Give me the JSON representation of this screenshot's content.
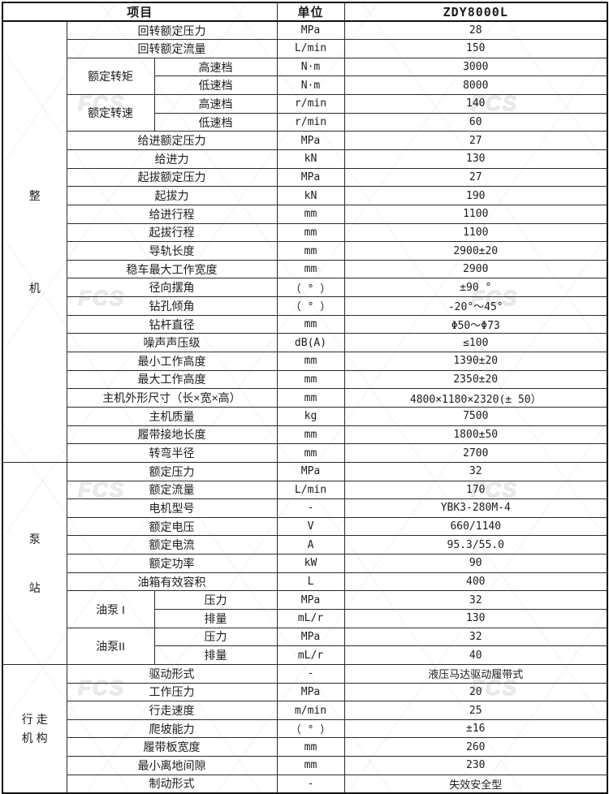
{
  "watermark": {
    "text": "FCS"
  },
  "header": {
    "item": "项目",
    "unit": "单位",
    "model": "ZDY8000L"
  },
  "sections": [
    {
      "label": "整机",
      "label_lines": [
        "整",
        "机"
      ],
      "rows": [
        {
          "item": "回转额定压力",
          "unit": "MPa",
          "value": "28"
        },
        {
          "item": "回转额定流量",
          "unit": "L/min",
          "value": "150"
        },
        {
          "group": "额定转矩",
          "span": 2,
          "item": "高速档",
          "unit": "N·m",
          "value": "3000"
        },
        {
          "grouped": true,
          "item": "低速档",
          "unit": "N·m",
          "value": "8000"
        },
        {
          "group": "额定转速",
          "span": 2,
          "item": "高速档",
          "unit": "r/min",
          "value": "140"
        },
        {
          "grouped": true,
          "item": "低速档",
          "unit": "r/min",
          "value": "60"
        },
        {
          "item": "给进额定压力",
          "unit": "MPa",
          "value": "27"
        },
        {
          "item": "给进力",
          "unit": "kN",
          "value": "130"
        },
        {
          "item": "起拔额定压力",
          "unit": "MPa",
          "value": "27"
        },
        {
          "item": "起拔力",
          "unit": "kN",
          "value": "190"
        },
        {
          "item": "给进行程",
          "unit": "mm",
          "value": "1100"
        },
        {
          "item": "起拔行程",
          "unit": "mm",
          "value": "1100"
        },
        {
          "item": "导轨长度",
          "unit": "mm",
          "value": "2900±20"
        },
        {
          "item": "稳车最大工作宽度",
          "unit": "mm",
          "value": "2900"
        },
        {
          "item": "径向摆角",
          "unit": "（ ° ）",
          "value": "±90 °"
        },
        {
          "item": "钻孔倾角",
          "unit": "（ ° ）",
          "value": "-20°～45°"
        },
        {
          "item": "钻杆直径",
          "unit": "mm",
          "value": "Φ50～Φ73"
        },
        {
          "item": "噪声声压级",
          "unit": "dB(A)",
          "value": "≤100"
        },
        {
          "item": "最小工作高度",
          "unit": "mm",
          "value": "1390±20"
        },
        {
          "item": "最大工作高度",
          "unit": "mm",
          "value": "2350±20"
        },
        {
          "item": "主机外形尺寸（长×宽×高）",
          "unit": "mm",
          "value": "4800×1180×2320(± 50）"
        },
        {
          "item": "主机质量",
          "unit": "kg",
          "value": "7500"
        },
        {
          "item": "履带接地长度",
          "unit": "mm",
          "value": "1800±50"
        },
        {
          "item": "转弯半径",
          "unit": "mm",
          "value": "2700"
        }
      ]
    },
    {
      "label": "泵站",
      "label_lines": [
        "泵",
        "站"
      ],
      "rows": [
        {
          "item": "额定压力",
          "unit": "MPa",
          "value": "32"
        },
        {
          "item": "额定流量",
          "unit": "L/min",
          "value": "170"
        },
        {
          "item": "电机型号",
          "unit": "-",
          "value": "YBK3-280M-4"
        },
        {
          "item": "额定电压",
          "unit": "V",
          "value": "660/1140"
        },
        {
          "item": "额定电流",
          "unit": "A",
          "value": "95.3/55.0"
        },
        {
          "item": "额定功率",
          "unit": "kW",
          "value": "90"
        },
        {
          "item": "油箱有效容积",
          "unit": "L",
          "value": "400"
        },
        {
          "group": "油泵 I",
          "span": 2,
          "item": "压力",
          "unit": "MPa",
          "value": "32"
        },
        {
          "grouped": true,
          "item": "排量",
          "unit": "mL/r",
          "value": "130"
        },
        {
          "group": "油泵II",
          "span": 2,
          "item": "压力",
          "unit": "MPa",
          "value": "32"
        },
        {
          "grouped": true,
          "item": "排量",
          "unit": "mL/r",
          "value": "40"
        }
      ]
    },
    {
      "label": "行走机构",
      "label_lines": [
        "行 走",
        "机 构"
      ],
      "rows": [
        {
          "item": "驱动形式",
          "unit": "-",
          "value": "液压马达驱动履带式"
        },
        {
          "item": "工作压力",
          "unit": "MPa",
          "value": "20"
        },
        {
          "item": "行走速度",
          "unit": "m/min",
          "value": "25"
        },
        {
          "item": "爬坡能力",
          "unit": "（ ° ）",
          "value": "±16"
        },
        {
          "item": "履带板宽度",
          "unit": "mm",
          "value": "260"
        },
        {
          "item": "最小离地间隙",
          "unit": "mm",
          "value": "230"
        },
        {
          "item": "制动形式",
          "unit": "-",
          "value": "失效安全型"
        }
      ]
    }
  ]
}
